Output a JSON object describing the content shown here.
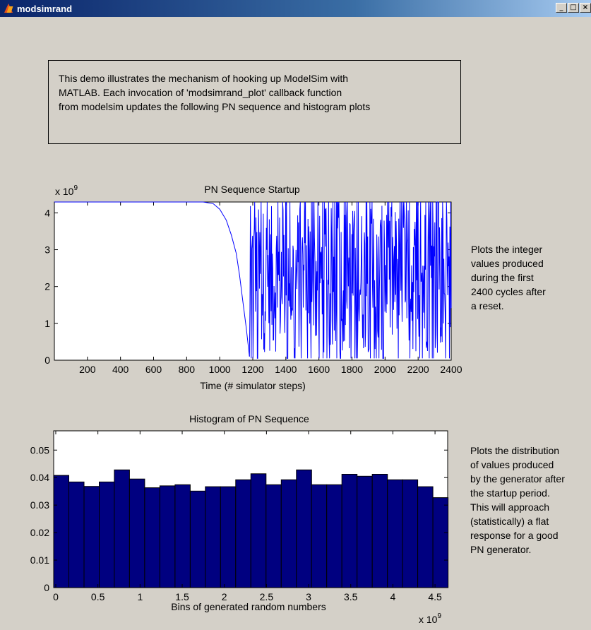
{
  "window": {
    "title": "modsimrand",
    "controls": [
      "_",
      "□",
      "×"
    ]
  },
  "description": [
    "This demo illustrates the mechanism of hooking up ModelSim with",
    "MATLAB. Each invocation of 'modsimrand_plot' callback function",
    "from modelsim updates the following PN sequence and histogram plots"
  ],
  "notes": {
    "top": [
      "Plots the integer",
      "values produced",
      "during the first",
      "2400 cycles after",
      "a reset."
    ],
    "bottom": [
      "Plots the distribution",
      "of values produced",
      "by the generator after",
      "the startup period.",
      "This will approach",
      "(statistically) a flat",
      "response for a good",
      "PN generator."
    ]
  },
  "colors": {
    "line": "#0000ff",
    "bar": "#000080",
    "background": "#d4d0c8"
  },
  "chart_data": [
    {
      "type": "line",
      "title": "PN Sequence Startup",
      "xlabel": "Time (# simulator steps)",
      "ylabel": "",
      "exponent_label": "x 10",
      "exponent_power": "9",
      "xlim": [
        0,
        2400
      ],
      "ylim": [
        0,
        4.294967296
      ],
      "xticks": [
        200,
        400,
        600,
        800,
        1000,
        1200,
        1400,
        1600,
        1800,
        2000,
        2200,
        2400
      ],
      "yticks": [
        0,
        1,
        2,
        3,
        4
      ],
      "series": [
        {
          "description_of_shape": "",
          "x": [
            0,
            900,
            960,
            1000,
            1040,
            1070,
            1100,
            1120,
            1140,
            1160,
            1180
          ],
          "values": [
            4.294967296,
            4.294967296,
            4.25,
            4.1,
            3.8,
            3.4,
            2.9,
            2.3,
            1.6,
            0.9,
            0.1
          ]
        }
      ]
    },
    {
      "type": "bar",
      "title": "Histogram of PN Sequence",
      "xlabel": "Bins of generated random numbers",
      "ylabel": "",
      "exponent_label": "x 10",
      "exponent_power": "9",
      "xlim": [
        0,
        4.5
      ],
      "ylim": [
        0,
        0.057
      ],
      "xticks": [
        0,
        0.5,
        1,
        1.5,
        2,
        2.5,
        3,
        3.5,
        4,
        4.5
      ],
      "xtick_labels": [
        "0",
        "0.5",
        "1",
        "1.5",
        "2",
        "2.5",
        "3",
        "3.5",
        "4",
        "4.5"
      ],
      "yticks": [
        0,
        0.01,
        0.02,
        0.03,
        0.04,
        0.05
      ],
      "ytick_labels": [
        "0",
        "0.01",
        "0.02",
        "0.03",
        "0.04",
        "0.05"
      ],
      "bin_width": 0.18,
      "values": [
        0.0408,
        0.0384,
        0.0368,
        0.0384,
        0.0428,
        0.0395,
        0.0363,
        0.037,
        0.0374,
        0.0351,
        0.0367,
        0.0367,
        0.0392,
        0.0414,
        0.0374,
        0.0392,
        0.0428,
        0.0374,
        0.0374,
        0.0412,
        0.0405,
        0.0412,
        0.0392,
        0.0392,
        0.0367,
        0.0327
      ]
    }
  ]
}
